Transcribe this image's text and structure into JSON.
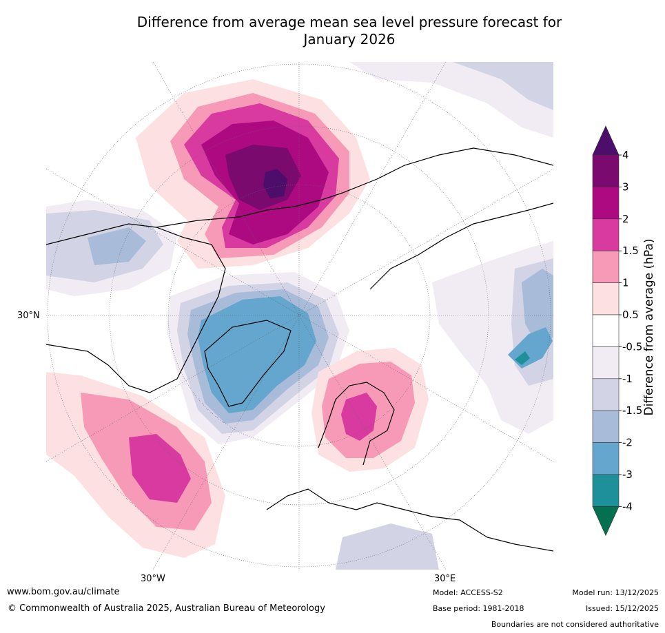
{
  "title_line1": "Difference from average mean sea level pressure forecast for",
  "title_line2": "January 2026",
  "map": {
    "lat_label": "30°N",
    "lon_labels": [
      "30°W",
      "30°E"
    ]
  },
  "colorbar": {
    "label": "Difference from average (hPa)",
    "ticks": [
      "4",
      "3",
      "2",
      "1.5",
      "1",
      "0.5",
      "-0.5",
      "-1",
      "-1.5",
      "-2",
      "-3",
      "-4"
    ],
    "colors": [
      "#4d0d6b",
      "#7b0a6e",
      "#ad0a82",
      "#d83aa0",
      "#f79ab8",
      "#fde0e1",
      "#ffffff",
      "#f1ecf3",
      "#d3d3e6",
      "#a8bbd9",
      "#64a6cd",
      "#1e9099",
      "#05704f"
    ]
  },
  "footer": {
    "url": "www.bom.gov.au/climate",
    "copyright": "© Commonwealth of Australia 2025, Australian Bureau of Meteorology",
    "model": "Model: ACCESS-S2",
    "base_period": "Base period: 1981-2018",
    "model_run": "Model run: 13/12/2025",
    "issued": "Issued: 15/12/2025",
    "disclaimer": "Boundaries are not considered authoritative"
  }
}
